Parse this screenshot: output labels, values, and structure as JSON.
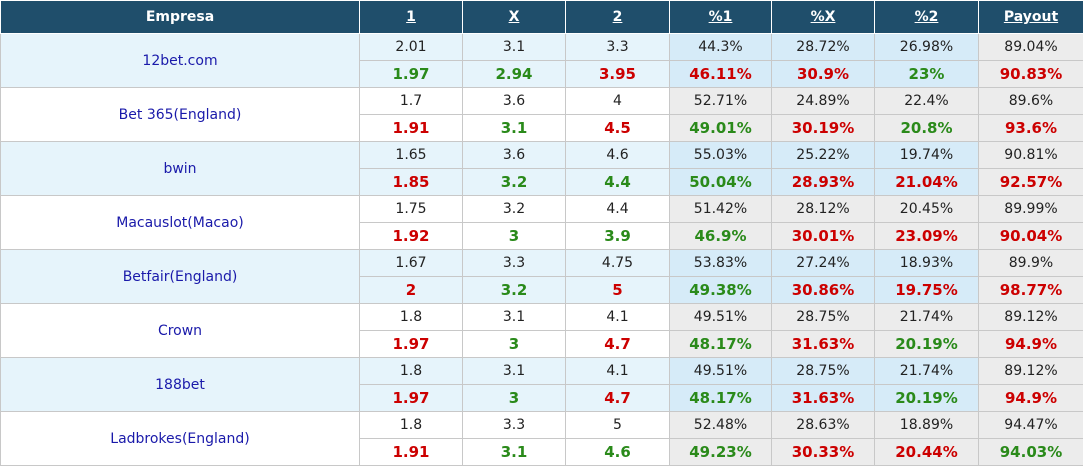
{
  "headers": {
    "empresa": "Empresa",
    "h1": "1",
    "hx": "X",
    "h2": "2",
    "p1": "%1",
    "px": "%X",
    "p2": "%2",
    "payout": "Payout"
  },
  "colors": {
    "header_bg": "#1f4e6b",
    "up": "#cc0000",
    "down": "#2a8a1a",
    "name": "#1a1aaa"
  },
  "bookmakers": [
    {
      "name": "12bet.com",
      "open": [
        "2.01",
        "3.1",
        "3.3",
        "44.3%",
        "28.72%",
        "26.98%",
        "89.04%"
      ],
      "live": [
        "1.97",
        "2.94",
        "3.95",
        "46.11%",
        "30.9%",
        "23%",
        "90.83%"
      ],
      "live_colors": [
        "green",
        "green",
        "red",
        "red",
        "red",
        "green",
        "red"
      ]
    },
    {
      "name": "Bet 365(England)",
      "open": [
        "1.7",
        "3.6",
        "4",
        "52.71%",
        "24.89%",
        "22.4%",
        "89.6%"
      ],
      "live": [
        "1.91",
        "3.1",
        "4.5",
        "49.01%",
        "30.19%",
        "20.8%",
        "93.6%"
      ],
      "live_colors": [
        "red",
        "green",
        "red",
        "green",
        "red",
        "green",
        "red"
      ]
    },
    {
      "name": "bwin",
      "open": [
        "1.65",
        "3.6",
        "4.6",
        "55.03%",
        "25.22%",
        "19.74%",
        "90.81%"
      ],
      "live": [
        "1.85",
        "3.2",
        "4.4",
        "50.04%",
        "28.93%",
        "21.04%",
        "92.57%"
      ],
      "live_colors": [
        "red",
        "green",
        "green",
        "green",
        "red",
        "red",
        "red"
      ]
    },
    {
      "name": "Macauslot(Macao)",
      "open": [
        "1.75",
        "3.2",
        "4.4",
        "51.42%",
        "28.12%",
        "20.45%",
        "89.99%"
      ],
      "live": [
        "1.92",
        "3",
        "3.9",
        "46.9%",
        "30.01%",
        "23.09%",
        "90.04%"
      ],
      "live_colors": [
        "red",
        "green",
        "green",
        "green",
        "red",
        "red",
        "red"
      ]
    },
    {
      "name": "Betfair(England)",
      "open": [
        "1.67",
        "3.3",
        "4.75",
        "53.83%",
        "27.24%",
        "18.93%",
        "89.9%"
      ],
      "live": [
        "2",
        "3.2",
        "5",
        "49.38%",
        "30.86%",
        "19.75%",
        "98.77%"
      ],
      "live_colors": [
        "red",
        "green",
        "red",
        "green",
        "red",
        "red",
        "red"
      ]
    },
    {
      "name": "Crown",
      "open": [
        "1.8",
        "3.1",
        "4.1",
        "49.51%",
        "28.75%",
        "21.74%",
        "89.12%"
      ],
      "live": [
        "1.97",
        "3",
        "4.7",
        "48.17%",
        "31.63%",
        "20.19%",
        "94.9%"
      ],
      "live_colors": [
        "red",
        "green",
        "red",
        "green",
        "red",
        "green",
        "red"
      ]
    },
    {
      "name": "188bet",
      "open": [
        "1.8",
        "3.1",
        "4.1",
        "49.51%",
        "28.75%",
        "21.74%",
        "89.12%"
      ],
      "live": [
        "1.97",
        "3",
        "4.7",
        "48.17%",
        "31.63%",
        "20.19%",
        "94.9%"
      ],
      "live_colors": [
        "red",
        "green",
        "red",
        "green",
        "red",
        "green",
        "red"
      ]
    },
    {
      "name": "Ladbrokes(England)",
      "open": [
        "1.8",
        "3.3",
        "5",
        "52.48%",
        "28.63%",
        "18.89%",
        "94.47%"
      ],
      "live": [
        "1.91",
        "3.1",
        "4.6",
        "49.23%",
        "30.33%",
        "20.44%",
        "94.03%"
      ],
      "live_colors": [
        "red",
        "green",
        "green",
        "green",
        "red",
        "red",
        "green"
      ]
    }
  ]
}
